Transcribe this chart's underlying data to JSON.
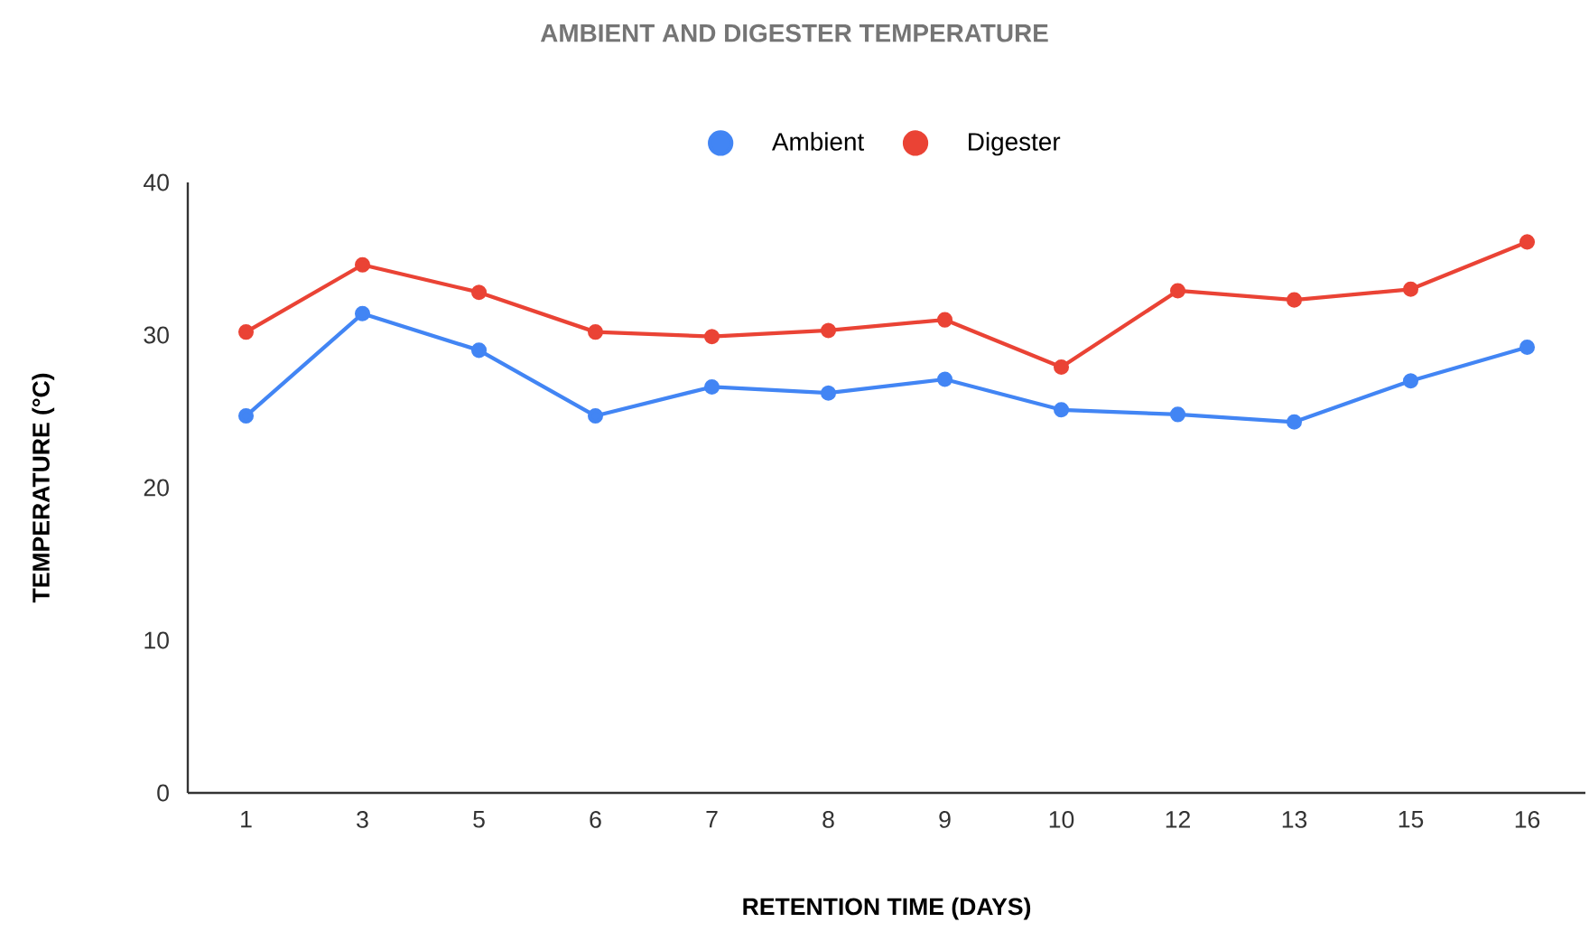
{
  "chart_data": {
    "type": "line",
    "title": "AMBIENT AND DIGESTER TEMPERATURE",
    "xlabel": "RETENTION TIME (DAYS)",
    "ylabel": "TEMPERATURE (°C)",
    "categories": [
      "1",
      "3",
      "5",
      "6",
      "7",
      "8",
      "9",
      "10",
      "12",
      "13",
      "15",
      "16"
    ],
    "series": [
      {
        "name": "Ambient",
        "color": "#4285f4",
        "values": [
          24.7,
          31.4,
          29.0,
          24.7,
          26.6,
          26.2,
          27.1,
          25.1,
          24.8,
          24.3,
          27.0,
          29.2
        ]
      },
      {
        "name": "Digester",
        "color": "#ea4335",
        "values": [
          30.2,
          34.6,
          32.8,
          30.2,
          29.9,
          30.3,
          31.0,
          27.9,
          32.9,
          32.3,
          33.0,
          36.1
        ]
      }
    ],
    "ylim": [
      0,
      40
    ],
    "yticks": [
      0,
      10,
      20,
      30,
      40
    ],
    "grid": false,
    "legend": "top",
    "marker": "circle",
    "line_style": "solid"
  }
}
